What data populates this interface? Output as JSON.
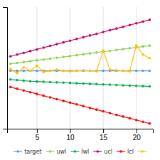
{
  "chart_data": {
    "type": "line",
    "x": [
      1,
      2,
      3,
      4,
      5,
      6,
      7,
      8,
      9,
      10,
      11,
      12,
      13,
      14,
      15,
      16,
      17,
      18,
      19,
      20,
      21,
      22
    ],
    "series": [
      {
        "name": "target",
        "color": "#5b9bd5",
        "marker": "circle",
        "values": [
          1.0,
          1.0,
          1.0,
          1.0,
          1.0,
          1.0,
          1.0,
          1.0,
          1.0,
          1.0,
          1.0,
          1.0,
          1.0,
          1.0,
          1.0,
          1.0,
          1.0,
          1.0,
          1.0,
          1.0,
          1.0,
          1.0
        ]
      },
      {
        "name": "uwl",
        "color": "#92d050",
        "marker": "circle",
        "values": [
          2.2,
          2.35,
          2.5,
          2.65,
          2.8,
          2.95,
          3.1,
          3.25,
          3.4,
          3.55,
          3.7,
          3.85,
          4.0,
          4.15,
          4.3,
          4.45,
          4.6,
          4.75,
          4.9,
          5.05,
          5.2,
          5.35
        ]
      },
      {
        "name": "lwl",
        "color": "#00b050",
        "marker": "circle",
        "values": [
          -0.5,
          -0.6,
          -0.7,
          -0.8,
          -0.85,
          -0.9,
          -0.95,
          -1.0,
          -1.05,
          -1.1,
          -1.15,
          -1.2,
          -1.25,
          -1.3,
          -1.35,
          -1.4,
          -1.45,
          -1.5,
          -1.55,
          -1.6,
          -1.65,
          -1.7
        ]
      },
      {
        "name": "ucl",
        "color": "#cc0066",
        "marker": "circle",
        "values": [
          3.5,
          3.8,
          4.1,
          4.4,
          4.7,
          5.0,
          5.3,
          5.6,
          5.9,
          6.2,
          6.5,
          6.8,
          7.1,
          7.4,
          7.7,
          8.0,
          8.3,
          8.6,
          8.9,
          9.2,
          9.5,
          9.8
        ]
      },
      {
        "name": "lcl",
        "color": "#ff0000",
        "marker": "circle",
        "values": [
          -1.8,
          -2.1,
          -2.4,
          -2.7,
          -3.0,
          -3.3,
          -3.6,
          -3.9,
          -4.2,
          -4.5,
          -4.8,
          -5.1,
          -5.4,
          -5.7,
          -6.0,
          -6.3,
          -6.6,
          -6.9,
          -7.2,
          -7.5,
          -7.8,
          -8.1
        ]
      },
      {
        "color": "#ffc000",
        "marker": "circle",
        "values": [
          1.3,
          0.6,
          1.6,
          1.0,
          1.9,
          0.8,
          1.0,
          1.2,
          1.0,
          0.9,
          1.0,
          1.1,
          1.0,
          0.9,
          4.5,
          1.2,
          1.1,
          1.0,
          0.9,
          5.4,
          3.8,
          3.2
        ]
      }
    ],
    "xlim": [
      0.5,
      22.5
    ],
    "xticks": [
      5,
      10,
      15,
      20
    ],
    "ylim": [
      -9.0,
      12.0
    ],
    "yticks": [],
    "grid": true,
    "tick_labels": "x",
    "legend": "bottom"
  }
}
